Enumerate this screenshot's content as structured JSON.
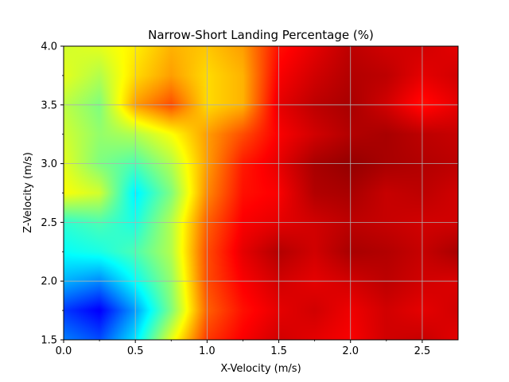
{
  "chart_data": {
    "type": "heatmap",
    "title": "Narrow-Short Landing Percentage (%)",
    "xlabel": "X-Velocity (m/s)",
    "ylabel": "Z-Velocity (m/s)",
    "xlim": [
      0.0,
      2.75
    ],
    "ylim": [
      1.5,
      4.0
    ],
    "x_ticks": [
      0.0,
      0.5,
      1.0,
      1.5,
      2.0,
      2.5
    ],
    "x_tick_labels": [
      "0.0",
      "0.5",
      "1.0",
      "1.5",
      "2.0",
      "2.5"
    ],
    "y_ticks": [
      1.5,
      2.0,
      2.5,
      3.0,
      3.5,
      4.0
    ],
    "y_tick_labels": [
      "1.5",
      "2.0",
      "2.5",
      "3.0",
      "3.5",
      "4.0"
    ],
    "grid": true,
    "colormap": "jet",
    "x": [
      0.0,
      0.25,
      0.5,
      0.75,
      1.0,
      1.25,
      1.5,
      1.75,
      2.0,
      2.25,
      2.5,
      2.75
    ],
    "y": [
      1.5,
      1.75,
      2.0,
      2.25,
      2.5,
      2.75,
      3.0,
      3.25,
      3.5,
      3.75,
      4.0
    ],
    "z_normalized": [
      [
        0.25,
        0.2,
        0.35,
        0.6,
        0.82,
        0.88,
        0.92,
        0.9,
        0.88,
        0.92,
        0.93,
        0.9
      ],
      [
        0.18,
        0.12,
        0.28,
        0.5,
        0.78,
        0.86,
        0.9,
        0.92,
        0.89,
        0.92,
        0.9,
        0.92
      ],
      [
        0.3,
        0.26,
        0.38,
        0.52,
        0.8,
        0.88,
        0.92,
        0.9,
        0.92,
        0.94,
        0.92,
        0.91
      ],
      [
        0.38,
        0.4,
        0.45,
        0.55,
        0.8,
        0.9,
        0.95,
        0.92,
        0.96,
        0.95,
        0.93,
        0.96
      ],
      [
        0.42,
        0.45,
        0.4,
        0.55,
        0.78,
        0.88,
        0.9,
        0.92,
        0.94,
        0.93,
        0.92,
        0.92
      ],
      [
        0.62,
        0.58,
        0.36,
        0.5,
        0.74,
        0.86,
        0.88,
        0.95,
        0.96,
        0.93,
        0.94,
        0.92
      ],
      [
        0.6,
        0.5,
        0.45,
        0.55,
        0.72,
        0.85,
        0.9,
        0.96,
        0.98,
        0.96,
        0.95,
        0.94
      ],
      [
        0.58,
        0.52,
        0.55,
        0.62,
        0.72,
        0.8,
        0.88,
        0.92,
        0.95,
        0.96,
        0.94,
        0.93
      ],
      [
        0.56,
        0.5,
        0.72,
        0.8,
        0.66,
        0.7,
        0.9,
        0.94,
        0.96,
        0.92,
        0.86,
        0.9
      ],
      [
        0.6,
        0.55,
        0.66,
        0.72,
        0.66,
        0.7,
        0.88,
        0.92,
        0.95,
        0.94,
        0.9,
        0.92
      ],
      [
        0.58,
        0.6,
        0.64,
        0.7,
        0.68,
        0.72,
        0.86,
        0.9,
        0.94,
        0.92,
        0.92,
        0.9
      ]
    ]
  }
}
